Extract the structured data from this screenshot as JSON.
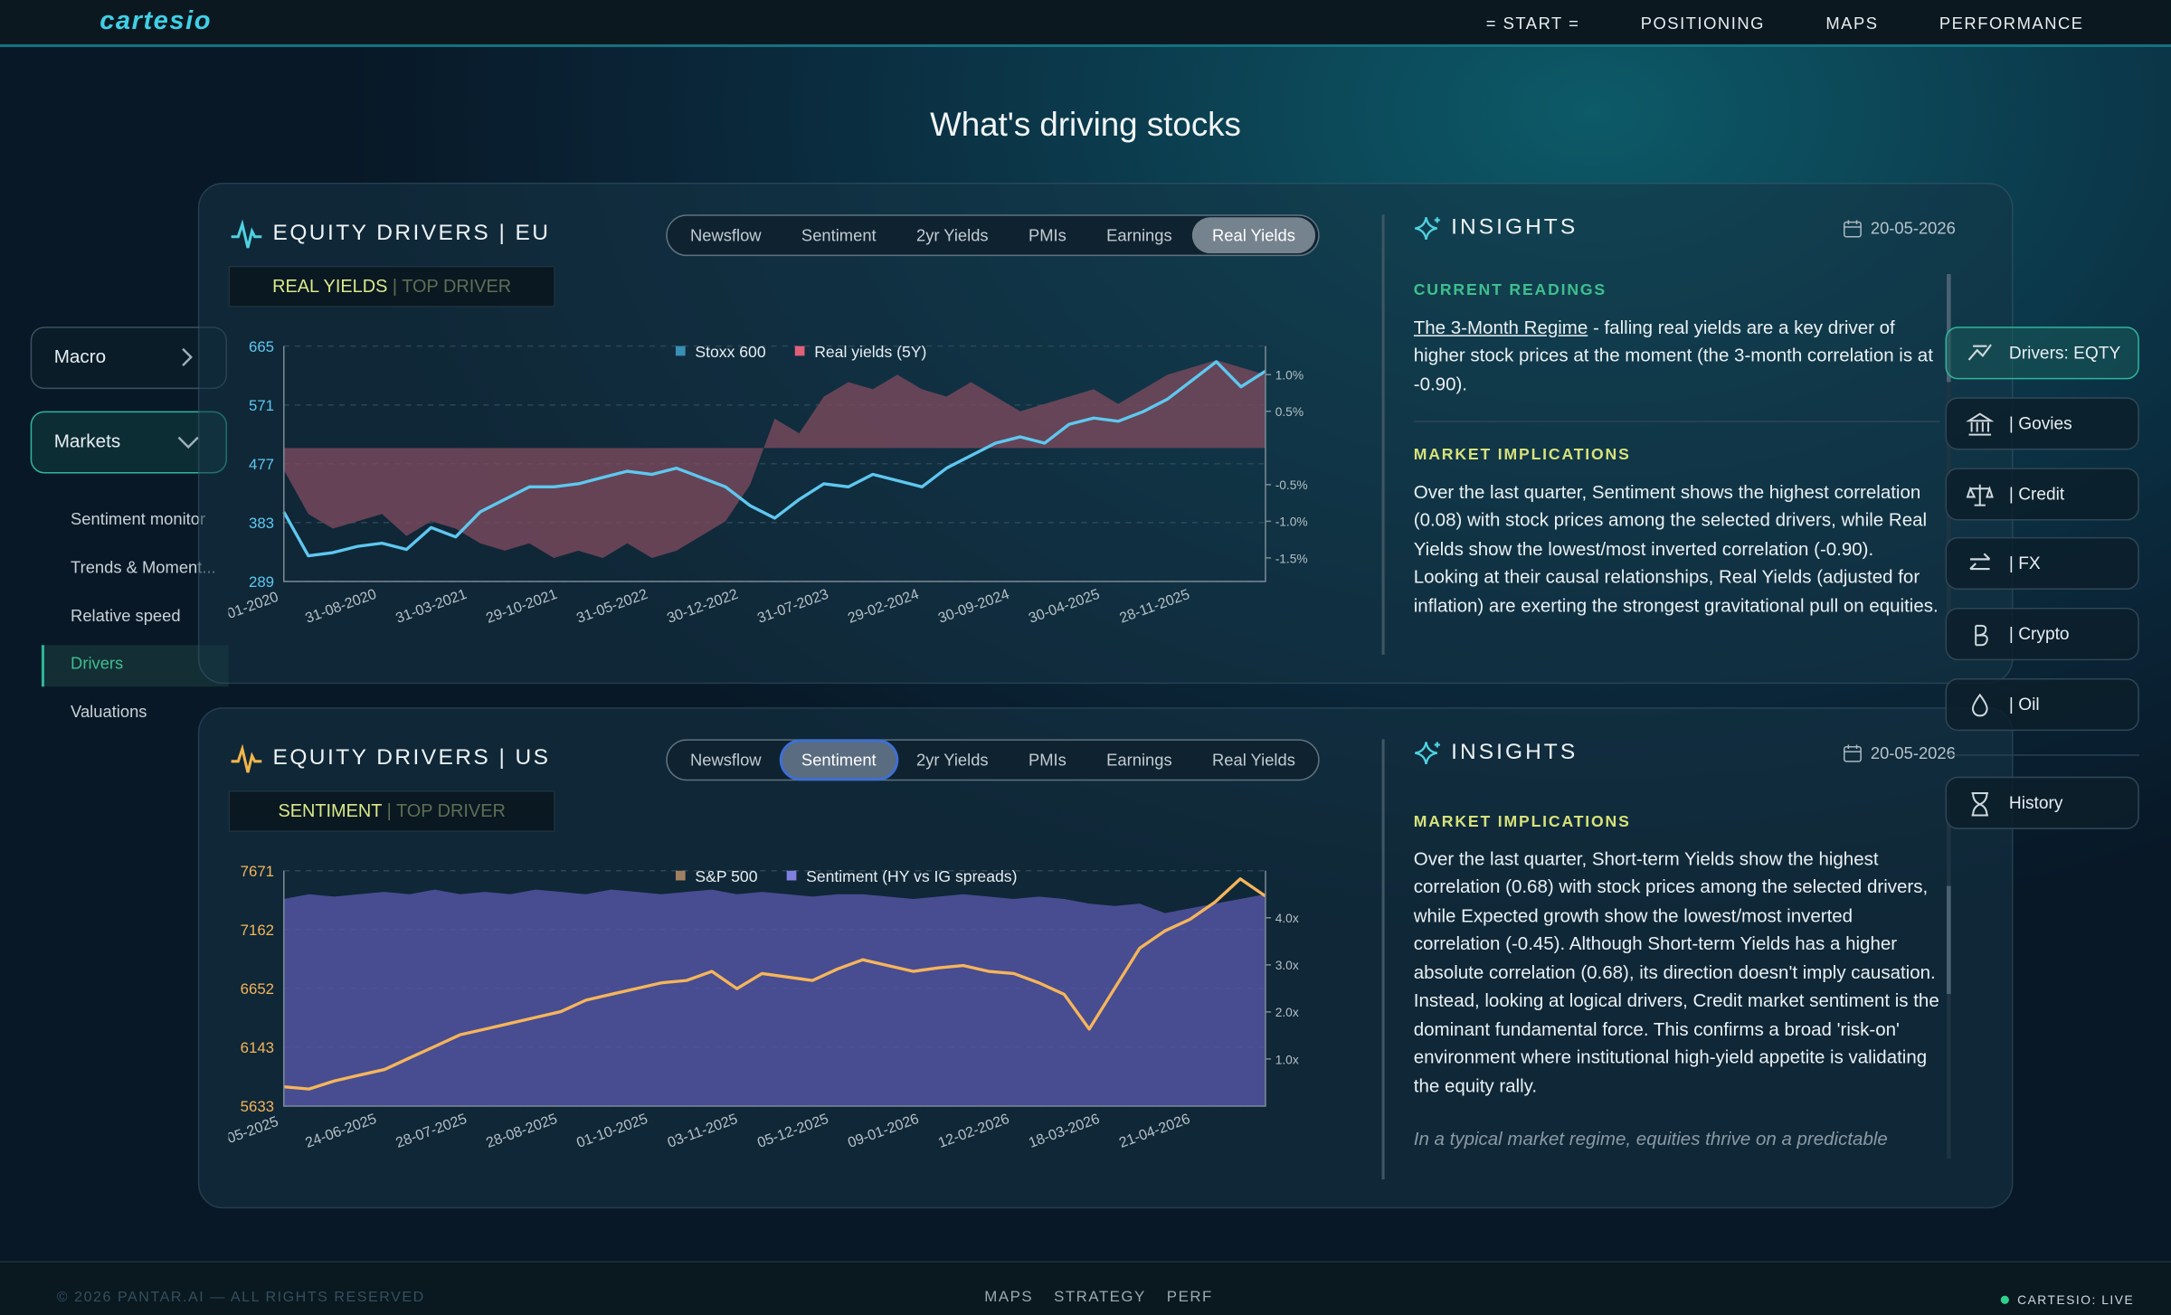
{
  "nav": {
    "brand": "cartesio",
    "links": [
      "= START =",
      "POSITIONING",
      "MAPS",
      "PERFORMANCE"
    ]
  },
  "page_title": "What's driving stocks",
  "sidebar": {
    "macro": "Macro",
    "markets": "Markets",
    "items": [
      "Sentiment monitor",
      "Trends & Moment...",
      "Relative speed",
      "Drivers",
      "Valuations"
    ],
    "active_item": 3
  },
  "right_nav": {
    "items": [
      "Drivers: EQTY",
      "| Govies",
      "| Credit",
      "| FX",
      "| Crypto",
      "| Oil"
    ],
    "active_item": 0,
    "history": "History"
  },
  "panels": [
    {
      "title": "EQUITY DRIVERS | EU",
      "tabs": [
        "Newsflow",
        "Sentiment",
        "2yr Yields",
        "PMIs",
        "Earnings",
        "Real Yields"
      ],
      "active_tab": 5,
      "driver": "REAL YIELDS",
      "driver_suffix": "| TOP DRIVER",
      "insights_title": "INSIGHTS",
      "date": "20-05-2026",
      "sections": [
        {
          "heading": "CURRENT READINGS",
          "color": "#3fbf8f",
          "link": "The 3-Month Regime",
          "text": " - falling real yields are a key driver of higher stock prices at the moment (the 3-month correlation is at -0.90)."
        },
        {
          "heading": "MARKET IMPLICATIONS",
          "color": "#d7e27a",
          "text": "Over the last quarter, Sentiment shows the highest correlation (0.08) with stock prices among the selected drivers, while Real Yields show the lowest/most inverted correlation (-0.90). Looking at their causal relationships, Real Yields (adjusted for inflation) are exerting the strongest gravitational pull on equities."
        }
      ]
    },
    {
      "title": "EQUITY DRIVERS | US",
      "tabs": [
        "Newsflow",
        "Sentiment",
        "2yr Yields",
        "PMIs",
        "Earnings",
        "Real Yields"
      ],
      "active_tab": 1,
      "driver": "SENTIMENT",
      "driver_suffix": "| TOP DRIVER",
      "insights_title": "INSIGHTS",
      "date": "20-05-2026",
      "sections": [
        {
          "heading": "MARKET IMPLICATIONS",
          "color": "#d7e27a",
          "text": "Over the last quarter, Short-term Yields show the highest correlation (0.68) with stock prices among the selected drivers, while Expected growth show the lowest/most inverted correlation (-0.45). Although Short-term Yields has a higher absolute correlation (0.68), its direction doesn't imply causation. Instead, looking at logical drivers, Credit market sentiment is the dominant fundamental force. This confirms a broad 'risk-on' environment where institutional high-yield appetite is validating the equity rally.",
          "note": "In a typical market regime, equities thrive on a predictable"
        }
      ]
    }
  ],
  "charts": [
    {
      "type": "line",
      "ylim": [
        289,
        665
      ],
      "yticks": [
        289,
        383,
        477,
        571,
        665
      ],
      "y2lim": [
        -1.82,
        1.39
      ],
      "y2ticks": [
        {
          "value": 1.0,
          "label": "1.0%"
        },
        {
          "value": 0.5,
          "label": "0.5%"
        },
        {
          "value": -0.5,
          "label": "-0.5%"
        },
        {
          "value": -1.0,
          "label": "-1.0%"
        },
        {
          "value": -1.5,
          "label": "-1.5%"
        }
      ],
      "xticks": [
        "-01-2020",
        "31-08-2020",
        "31-03-2021",
        "29-10-2021",
        "31-05-2022",
        "30-12-2022",
        "31-07-2023",
        "29-02-2024",
        "30-09-2024",
        "30-04-2025",
        "28-11-2025"
      ],
      "grid": true,
      "series": [
        {
          "name": "Stoxx 600",
          "color": "#5ec8f0",
          "legend_color": "#3a8fb5",
          "kind": "line",
          "values": [
            400,
            330,
            335,
            345,
            350,
            340,
            375,
            360,
            400,
            420,
            440,
            440,
            445,
            455,
            465,
            460,
            470,
            455,
            440,
            410,
            390,
            420,
            445,
            440,
            460,
            450,
            440,
            470,
            490,
            510,
            520,
            510,
            540,
            550,
            545,
            560,
            580,
            610,
            640,
            600,
            625
          ]
        },
        {
          "name": "Real yields (5Y)",
          "color": "#7a4a5c",
          "legend_color": "#e0607a",
          "kind": "area",
          "axis": "y2",
          "values": [
            -0.3,
            -0.9,
            -1.1,
            -1.0,
            -0.9,
            -1.2,
            -1.0,
            -1.1,
            -1.3,
            -1.4,
            -1.3,
            -1.5,
            -1.4,
            -1.5,
            -1.3,
            -1.5,
            -1.4,
            -1.2,
            -1.0,
            -0.5,
            0.4,
            0.2,
            0.7,
            0.9,
            0.8,
            1.0,
            0.8,
            0.7,
            0.9,
            0.7,
            0.5,
            0.6,
            0.7,
            0.8,
            0.6,
            0.8,
            1.0,
            1.1,
            1.2,
            1.1,
            1.0
          ]
        }
      ]
    },
    {
      "type": "line",
      "ylim": [
        5633,
        7671
      ],
      "yticks": [
        5633,
        6143,
        6652,
        7162,
        7671
      ],
      "y2lim": [
        0,
        5
      ],
      "y2ticks": [
        {
          "value": 4,
          "label": "4.0x"
        },
        {
          "value": 3,
          "label": "3.0x"
        },
        {
          "value": 2,
          "label": "2.0x"
        },
        {
          "value": 1,
          "label": "1.0x"
        }
      ],
      "xticks": [
        "-05-2025",
        "24-06-2025",
        "28-07-2025",
        "28-08-2025",
        "01-10-2025",
        "03-11-2025",
        "05-12-2025",
        "09-01-2026",
        "12-02-2026",
        "18-03-2026",
        "21-04-2026"
      ],
      "grid": true,
      "series": [
        {
          "name": "S&P 500",
          "color": "#f5b55a",
          "legend_color": "#a08060",
          "kind": "line",
          "values": [
            5800,
            5780,
            5850,
            5900,
            5950,
            6050,
            6150,
            6250,
            6300,
            6350,
            6400,
            6450,
            6550,
            6600,
            6650,
            6700,
            6720,
            6800,
            6650,
            6780,
            6750,
            6720,
            6820,
            6900,
            6850,
            6800,
            6830,
            6850,
            6800,
            6780,
            6700,
            6600,
            6300,
            6650,
            7000,
            7150,
            7250,
            7400,
            7600,
            7450
          ]
        },
        {
          "name": "Sentiment (HY vs IG spreads)",
          "color": "#5656a8",
          "legend_color": "#8080e0",
          "kind": "area",
          "axis": "y2",
          "values": [
            4.4,
            4.5,
            4.45,
            4.5,
            4.55,
            4.5,
            4.6,
            4.5,
            4.55,
            4.5,
            4.6,
            4.55,
            4.5,
            4.6,
            4.55,
            4.5,
            4.55,
            4.6,
            4.5,
            4.55,
            4.5,
            4.45,
            4.5,
            4.5,
            4.45,
            4.4,
            4.45,
            4.5,
            4.45,
            4.4,
            4.45,
            4.4,
            4.3,
            4.25,
            4.3,
            4.1,
            4.2,
            4.3,
            4.4,
            4.5
          ]
        }
      ]
    }
  ],
  "footer": {
    "copyright": "© 2026 PANTAR.AI — ALL RIGHTS RESERVED",
    "links": [
      "MAPS",
      "STRATEGY",
      "PERF"
    ],
    "status": "CARTESIO: LIVE"
  }
}
